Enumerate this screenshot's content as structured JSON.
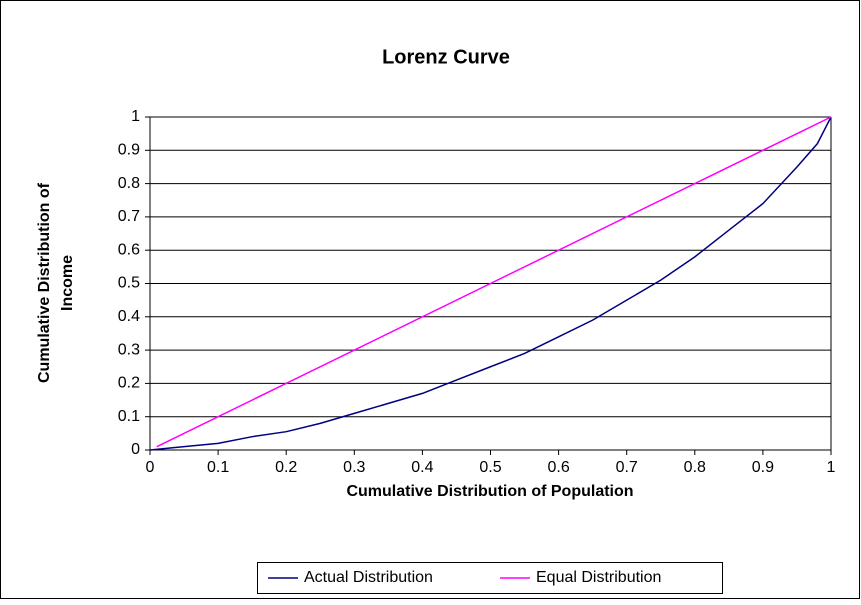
{
  "chart_data": {
    "type": "line",
    "title": "Lorenz Curve",
    "x_label": "Cumulative Distribution of Population",
    "y_label": [
      "Cumulative Distribution of",
      "Income"
    ],
    "series": [
      {
        "name": "Actual Distribution",
        "color": "#000080",
        "x": [
          0,
          0.05,
          0.1,
          0.15,
          0.2,
          0.25,
          0.3,
          0.35,
          0.4,
          0.45,
          0.5,
          0.55,
          0.6,
          0.65,
          0.7,
          0.75,
          0.8,
          0.85,
          0.9,
          0.95,
          0.98,
          1
        ],
        "values": [
          0,
          0.01,
          0.02,
          0.04,
          0.055,
          0.08,
          0.11,
          0.14,
          0.17,
          0.21,
          0.25,
          0.29,
          0.34,
          0.39,
          0.45,
          0.51,
          0.58,
          0.66,
          0.74,
          0.85,
          0.92,
          1
        ]
      },
      {
        "name": "Equal Distribution",
        "color": "#ff00ff",
        "x": [
          0.01,
          1
        ],
        "values": [
          0.01,
          1
        ]
      }
    ],
    "xlim": [
      0,
      1
    ],
    "xticks": [
      0,
      0.1,
      0.2,
      0.3,
      0.4,
      0.5,
      0.6,
      0.7,
      0.8,
      0.9,
      1
    ],
    "ylim": [
      0,
      1
    ],
    "yticks": [
      0,
      0.1,
      0.2,
      0.3,
      0.4,
      0.5,
      0.6,
      0.7,
      0.8,
      0.9,
      1
    ],
    "grid": true,
    "legend": "bottom"
  }
}
